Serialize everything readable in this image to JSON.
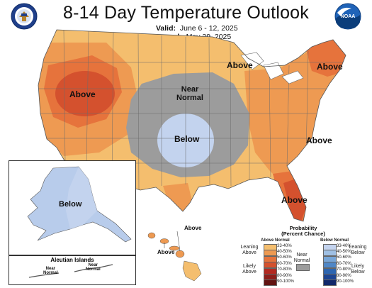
{
  "header": {
    "title": "8-14 Day Temperature Outlook",
    "valid_label": "Valid:",
    "valid_value": "June 6 - 12, 2025",
    "issued_label": "Issued:",
    "issued_value": "May 29, 2025"
  },
  "logos": {
    "left": "department-of-commerce-seal",
    "right": "noaa-logo",
    "right_text": "NOAA"
  },
  "regions": {
    "west_above": "Above",
    "plains_near_normal_1": "Near",
    "plains_near_normal_2": "Normal",
    "southern_plains_below": "Below",
    "great_lakes_above": "Above",
    "new_england_above": "Above",
    "southeast_above": "Above",
    "florida_above": "Above",
    "alaska_below": "Below",
    "hawaii_above_1": "Above",
    "hawaii_above_2": "Above",
    "aleutian_title": "Aleutian Islands",
    "aleutian_near_1a": "Near",
    "aleutian_near_1b": "Normal",
    "aleutian_near_2a": "Near",
    "aleutian_near_2b": "Normal"
  },
  "legend": {
    "title_1": "Probability",
    "title_2": "(Percent Chance)",
    "above_head": "Above Normal",
    "below_head": "Below Normal",
    "leaning_above_1": "Leaning",
    "leaning_above_2": "Above",
    "likely_above_1": "Likely",
    "likely_above_2": "Above",
    "near_normal_1": "Near",
    "near_normal_2": "Normal",
    "leaning_below_1": "Leaning",
    "leaning_below_2": "Below",
    "likely_below_1": "Likely",
    "likely_below_2": "Below",
    "above_bins": [
      {
        "label": "33-40%",
        "color": "#F4BE6E"
      },
      {
        "label": "40-50%",
        "color": "#EE9A52"
      },
      {
        "label": "50-60%",
        "color": "#E6733C"
      },
      {
        "label": "60-70%",
        "color": "#D4512E"
      },
      {
        "label": "70-80%",
        "color": "#B32A22"
      },
      {
        "label": "80-90%",
        "color": "#8E1F1B"
      },
      {
        "label": "90-100%",
        "color": "#621311"
      }
    ],
    "below_bins": [
      {
        "label": "33-40%",
        "color": "#C3D3EE"
      },
      {
        "label": "40-50%",
        "color": "#9FC0E4"
      },
      {
        "label": "50-60%",
        "color": "#77A6D8"
      },
      {
        "label": "60-70%",
        "color": "#4F87C7"
      },
      {
        "label": "70-80%",
        "color": "#2E66B0"
      },
      {
        "label": "80-90%",
        "color": "#1D4592"
      },
      {
        "label": "90-100%",
        "color": "#12286A"
      }
    ],
    "near_color": "#9C9C9C"
  },
  "colors": {
    "above_33_40": "#F4BE6E",
    "above_40_50": "#EE9A52",
    "above_50_60": "#E6733C",
    "above_60_70": "#D4512E",
    "near_normal": "#9C9C9C",
    "below_33_40": "#C3D3EE",
    "ocean": "#FFFFFF",
    "border": "#6b6b6b"
  }
}
